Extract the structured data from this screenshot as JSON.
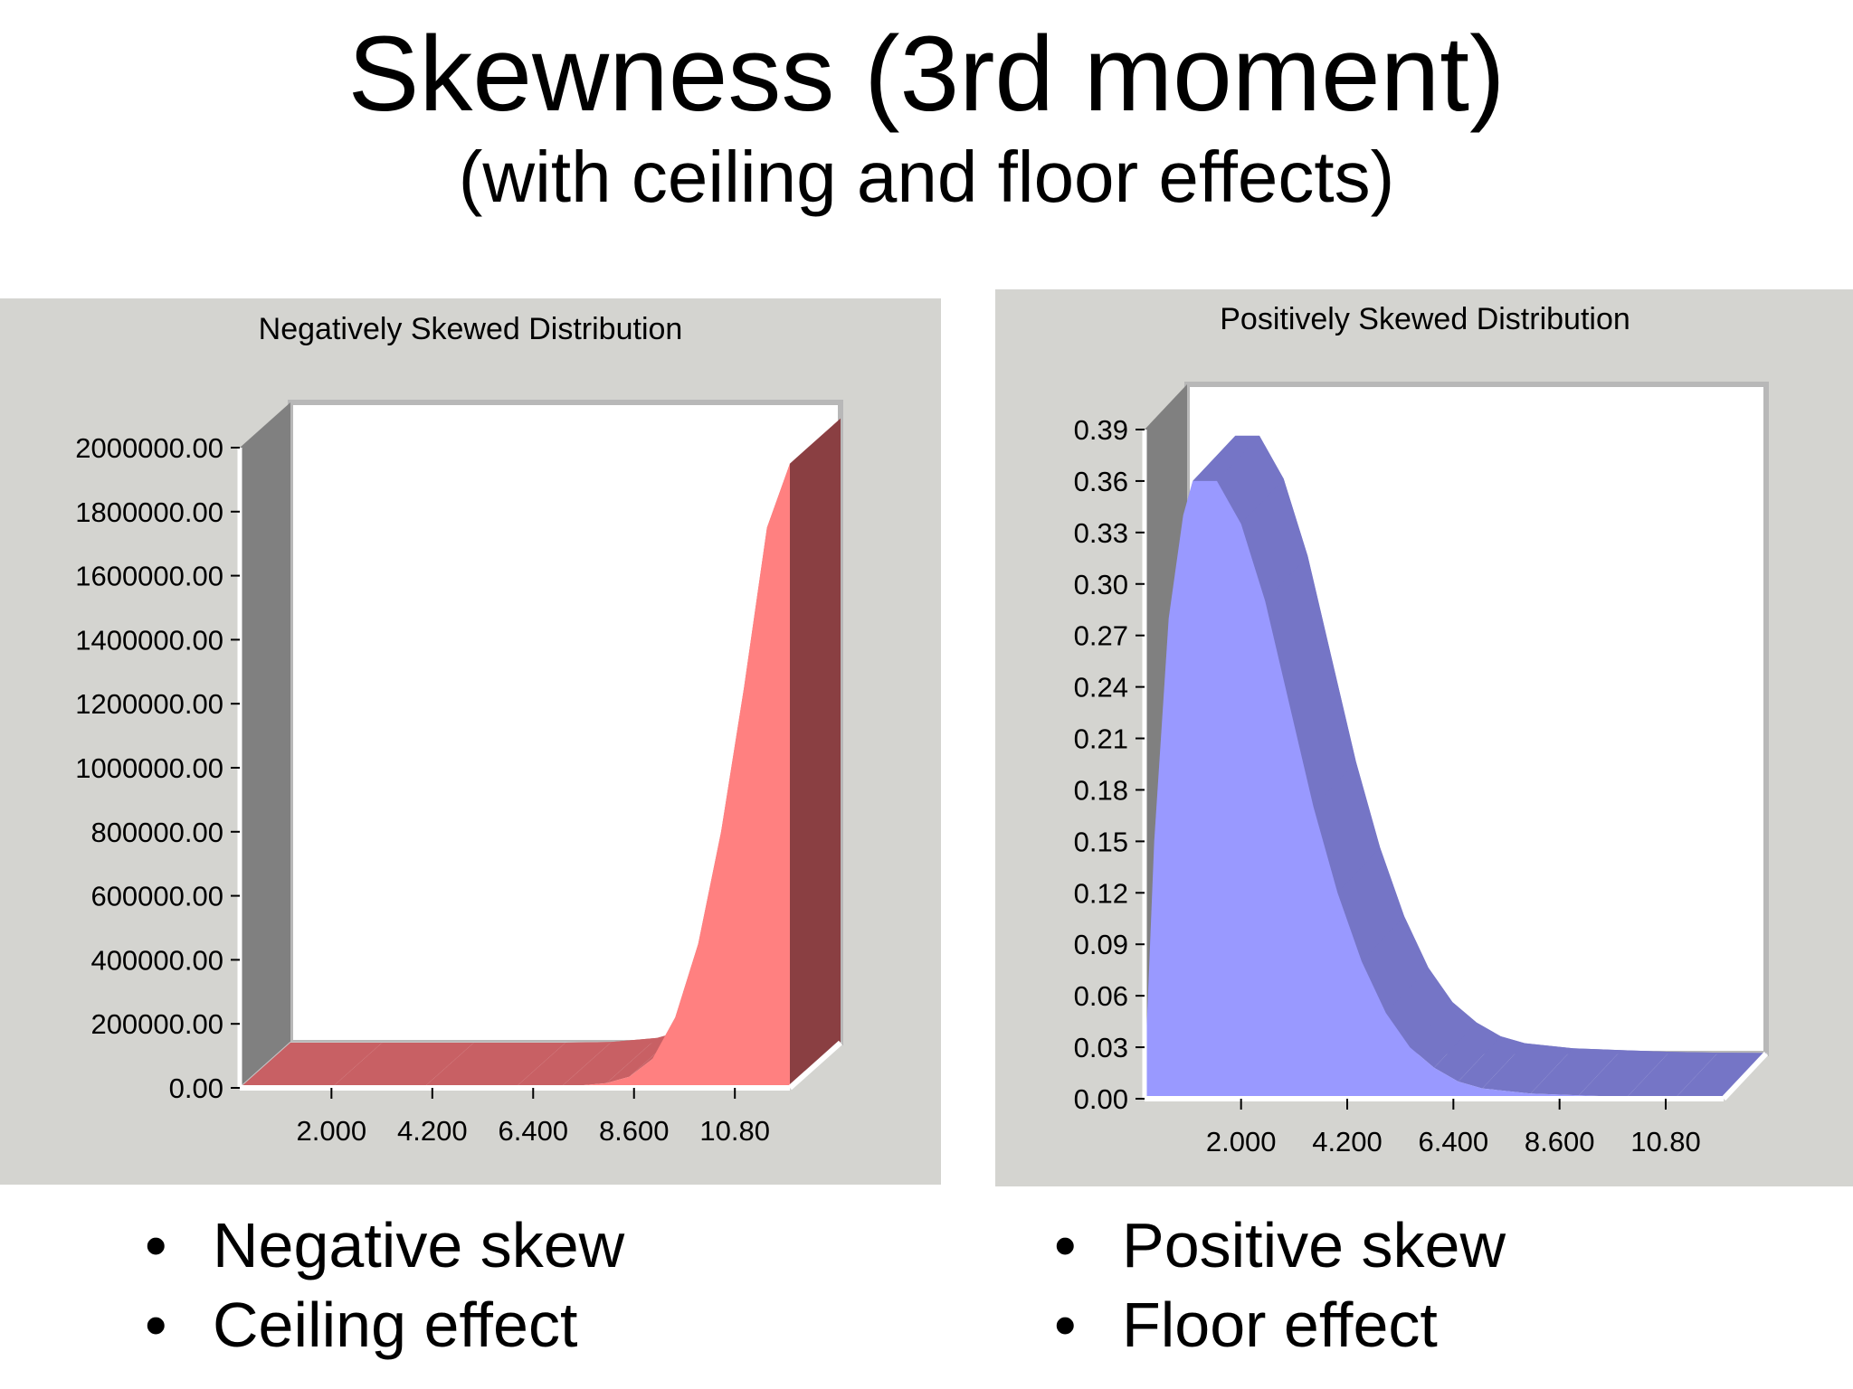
{
  "slide": {
    "title": "Skewness (3rd moment)",
    "subtitle": "(with ceiling and floor effects)"
  },
  "bullets_left": [
    "Negative skew",
    "Ceiling effect"
  ],
  "bullets_right": [
    "Positive skew",
    "Floor effect"
  ],
  "colors": {
    "panel_bg": "#d4d4d0",
    "neg_front": "#ff8080",
    "neg_back": "#c86064",
    "neg_side": "#8a3f42",
    "pos_front": "#9999ff",
    "pos_back": "#7575c6"
  },
  "chart_data": [
    {
      "type": "area",
      "title": "Negatively Skewed Distribution",
      "xlabel": "",
      "ylabel": "",
      "x_ticks": [
        "2.000",
        "4.200",
        "6.400",
        "8.600",
        "10.80"
      ],
      "x_tick_values": [
        2.0,
        4.2,
        6.4,
        8.6,
        10.8
      ],
      "xlim": [
        0,
        12
      ],
      "y_ticks": [
        "0.00",
        "200000.00",
        "400000.00",
        "600000.00",
        "800000.00",
        "1000000.00",
        "1200000.00",
        "1400000.00",
        "1600000.00",
        "1800000.00",
        "2000000.00"
      ],
      "ylim": [
        0,
        2000000
      ],
      "grid": false,
      "x": [
        0,
        2,
        4,
        6,
        7,
        8,
        8.5,
        9,
        9.5,
        10,
        10.5,
        11,
        11.5,
        12
      ],
      "y": [
        0,
        0,
        0,
        0,
        2000,
        15000,
        35000,
        90000,
        220000,
        450000,
        800000,
        1250000,
        1750000,
        1950000
      ]
    },
    {
      "type": "area",
      "title": "Positively Skewed Distribution",
      "xlabel": "",
      "ylabel": "",
      "x_ticks": [
        "2.000",
        "4.200",
        "6.400",
        "8.600",
        "10.80"
      ],
      "x_tick_values": [
        2.0,
        4.2,
        6.4,
        8.6,
        10.8
      ],
      "xlim": [
        0,
        12
      ],
      "y_ticks": [
        "0.00",
        "0.03",
        "0.06",
        "0.09",
        "0.12",
        "0.15",
        "0.18",
        "0.21",
        "0.24",
        "0.27",
        "0.30",
        "0.33",
        "0.36",
        "0.39"
      ],
      "ylim": [
        0,
        0.39
      ],
      "grid": false,
      "x": [
        0,
        0.2,
        0.5,
        0.8,
        1.0,
        1.5,
        2.0,
        2.5,
        3.0,
        3.5,
        4.0,
        4.5,
        5.0,
        5.5,
        6.0,
        6.5,
        7.0,
        8.0,
        9.0,
        10.0,
        11.0,
        12.0
      ],
      "y": [
        0.01,
        0.15,
        0.28,
        0.34,
        0.36,
        0.36,
        0.335,
        0.29,
        0.23,
        0.17,
        0.12,
        0.08,
        0.05,
        0.03,
        0.018,
        0.01,
        0.006,
        0.003,
        0.002,
        0.001,
        0.0005,
        0.0003
      ]
    }
  ]
}
